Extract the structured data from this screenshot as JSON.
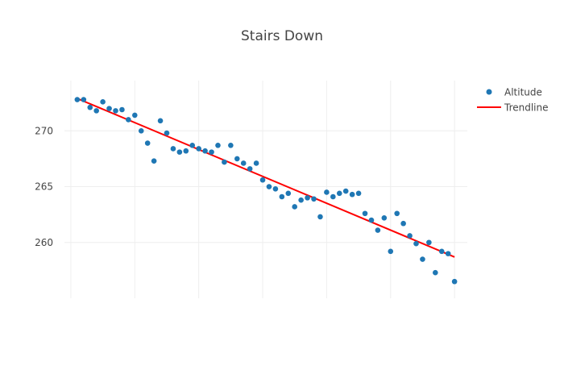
{
  "chart_data": {
    "type": "scatter",
    "title": "Stairs Down",
    "xlabel": "",
    "ylabel": "",
    "xlim": [
      -1,
      62
    ],
    "ylim": [
      255,
      274.5
    ],
    "x_tick_values": [
      0,
      10,
      20,
      30,
      40,
      50,
      60
    ],
    "y_tick_values": [
      260,
      265,
      270
    ],
    "y_tick_labels": [
      "260",
      "265",
      "270"
    ],
    "grid": true,
    "legend_position": "top-right",
    "series": [
      {
        "name": "Altitude",
        "mode": "markers",
        "color": "#1f77b4",
        "x": [
          1,
          2,
          3,
          4,
          5,
          6,
          7,
          8,
          9,
          10,
          11,
          12,
          13,
          14,
          15,
          16,
          17,
          18,
          19,
          20,
          21,
          22,
          23,
          24,
          25,
          26,
          27,
          28,
          29,
          30,
          31,
          32,
          33,
          34,
          35,
          36,
          37,
          38,
          39,
          40,
          41,
          42,
          43,
          44,
          45,
          46,
          47,
          48,
          49,
          50,
          51,
          52,
          53,
          54,
          55,
          56,
          57,
          58,
          59,
          60
        ],
        "y": [
          272.8,
          272.8,
          272.1,
          271.8,
          272.6,
          272.0,
          271.8,
          271.9,
          271.0,
          271.4,
          270.0,
          268.9,
          267.3,
          270.9,
          269.8,
          268.4,
          268.1,
          268.2,
          268.7,
          268.4,
          268.2,
          268.1,
          268.7,
          267.2,
          268.7,
          267.5,
          267.1,
          266.6,
          267.1,
          265.6,
          265.0,
          264.8,
          264.1,
          264.4,
          263.2,
          263.8,
          264.0,
          263.9,
          262.3,
          264.5,
          264.1,
          264.4,
          264.6,
          264.3,
          264.4,
          262.6,
          262.0,
          261.1,
          262.2,
          259.2,
          262.6,
          261.7,
          260.6,
          259.9,
          258.5,
          260.0,
          257.3,
          259.2,
          259.0,
          256.5
        ]
      },
      {
        "name": "Trendline",
        "mode": "lines",
        "color": "#ff0000",
        "x": [
          1,
          60
        ],
        "y": [
          272.9,
          258.7
        ]
      }
    ]
  }
}
